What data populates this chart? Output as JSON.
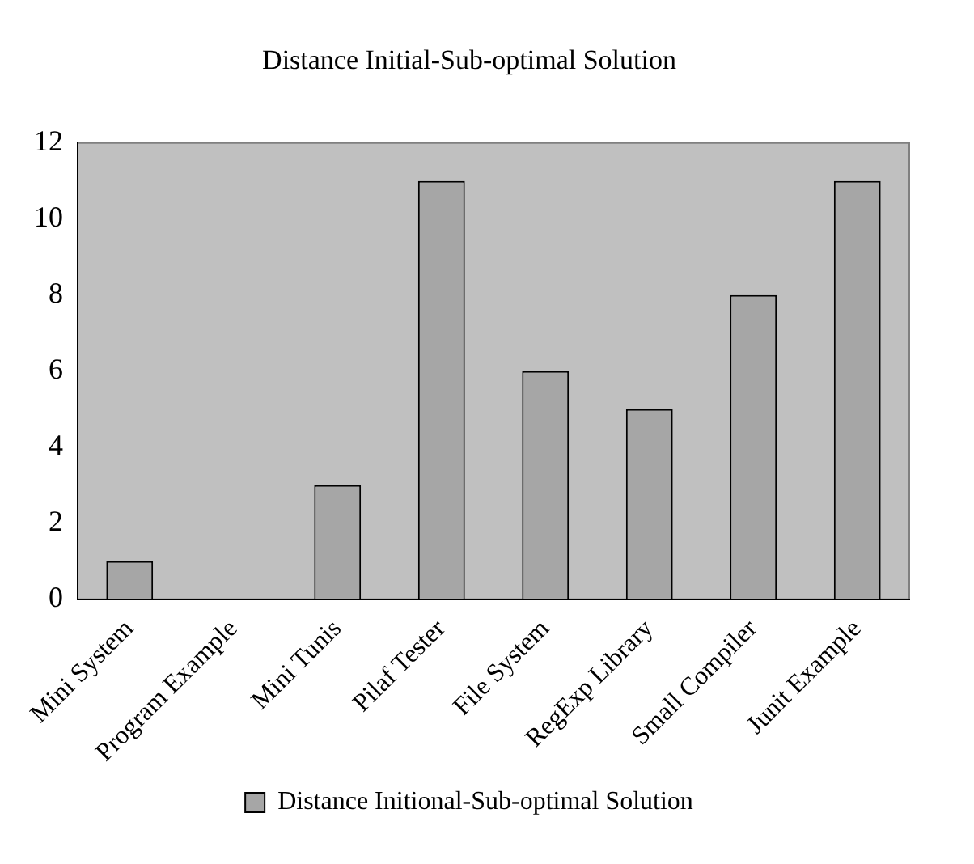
{
  "chart_data": {
    "type": "bar",
    "title": "Distance Initial-Sub-optimal Solution",
    "categories": [
      "Mini System",
      "Program Example",
      "Mini Tunis",
      "Pilaf Tester",
      "File System",
      "RegExp Library",
      "Small Compiler",
      "Junit Example"
    ],
    "series": [
      {
        "name": "Distance Initional-Sub-optimal Solution",
        "color": "#a6a6a6",
        "values": [
          1,
          0,
          3,
          11,
          6,
          5,
          8,
          11
        ]
      }
    ],
    "ylim": [
      0,
      12
    ],
    "yticks": [
      0,
      2,
      4,
      6,
      8,
      10,
      12
    ],
    "grid": false,
    "legend": "bottom"
  }
}
